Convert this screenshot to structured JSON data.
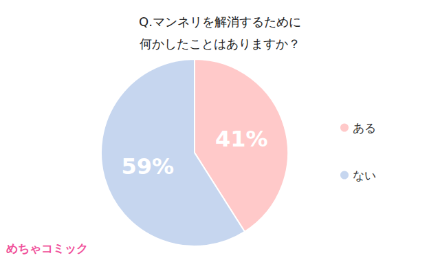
{
  "chart_data": {
    "type": "pie",
    "title": "Q.マンネリを解消するために\n何かしたことはありますか？",
    "categories": [
      "ある",
      "ない"
    ],
    "values": [
      41,
      59
    ],
    "value_labels": [
      "41%",
      "59%"
    ],
    "colors": [
      "#ffc9c9",
      "#c6d6ef"
    ],
    "data_labels": true,
    "legend": "right",
    "annotations": [
      "めちゃコミック"
    ]
  }
}
